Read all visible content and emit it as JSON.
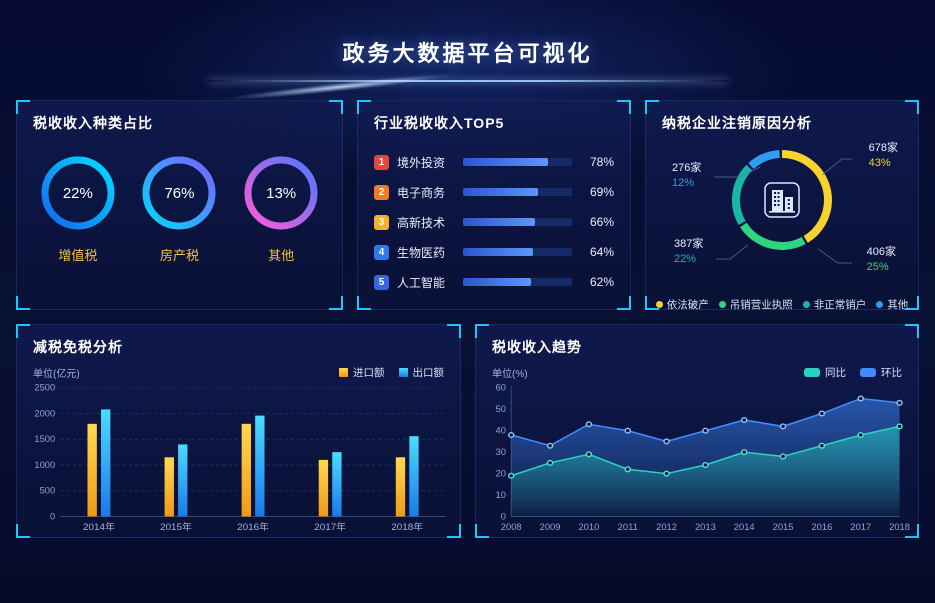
{
  "header": {
    "title": "政务大数据平台可视化"
  },
  "panels": {
    "tax_types": {
      "title": "税收收入种类占比"
    },
    "industry_top5": {
      "title": "行业税收收入TOP5"
    },
    "deregistration": {
      "title": "纳税企业注销原因分析"
    },
    "tax_reduction": {
      "title": "减税免税分析",
      "unit": "单位(亿元)"
    },
    "tax_trend": {
      "title": "税收收入趋势",
      "unit": "单位(%)"
    }
  },
  "chart_data": [
    {
      "id": "tax_types",
      "type": "pie",
      "title": "税收收入种类占比",
      "rings": [
        {
          "label": "增值税",
          "value": 22,
          "gradient": [
            "#1565f0",
            "#00e0ff"
          ]
        },
        {
          "label": "房产税",
          "value": 76,
          "gradient": [
            "#00d8ff",
            "#7b61ff"
          ]
        },
        {
          "label": "其他",
          "value": 13,
          "gradient": [
            "#ff5bd5",
            "#4f78ff"
          ]
        }
      ]
    },
    {
      "id": "industry_top5",
      "type": "bar",
      "title": "行业税收收入TOP5",
      "categories": [
        "境外投资",
        "电子商务",
        "高新技术",
        "生物医药",
        "人工智能"
      ],
      "values": [
        78,
        69,
        66,
        64,
        62
      ],
      "value_suffix": "%",
      "rank_colors": [
        "#e8453c",
        "#f07c2a",
        "#f0b32a",
        "#2e79f0",
        "#3a64e8"
      ]
    },
    {
      "id": "deregistration",
      "type": "pie",
      "title": "纳税企业注销原因分析",
      "slices": [
        {
          "label": "依法破产",
          "count": "678家",
          "percent": 43,
          "color": "#f6d32d",
          "pos": "top-right"
        },
        {
          "label": "吊销营业执照",
          "count": "406家",
          "percent": 25,
          "color": "#2fd57e",
          "pos": "bottom-right"
        },
        {
          "label": "非正常销户",
          "count": "387家",
          "percent": 22,
          "color": "#17b8a8",
          "pos": "bottom-left"
        },
        {
          "label": "其他",
          "count": "276家",
          "percent": 12,
          "color": "#2e9ff0",
          "pos": "left"
        }
      ]
    },
    {
      "id": "tax_reduction",
      "type": "bar",
      "title": "减税免税分析",
      "ylabel": "单位(亿元)",
      "categories": [
        "2014年",
        "2015年",
        "2016年",
        "2017年",
        "2018年"
      ],
      "series": [
        {
          "name": "进口额",
          "color_top": "#ffd94f",
          "color_bottom": "#f09a15",
          "values": [
            1800,
            1150,
            1800,
            1100,
            1150
          ]
        },
        {
          "name": "出口额",
          "color_top": "#49ddff",
          "color_bottom": "#1b79ec",
          "values": [
            2080,
            1400,
            1960,
            1250,
            1560
          ]
        }
      ],
      "ylim": [
        0,
        2500
      ],
      "yticks": [
        0,
        500,
        1000,
        1500,
        2000,
        2500
      ]
    },
    {
      "id": "tax_trend",
      "type": "area",
      "title": "税收收入趋势",
      "ylabel": "单位(%)",
      "x": [
        "2008",
        "2009",
        "2010",
        "2011",
        "2012",
        "2013",
        "2014",
        "2015",
        "2016",
        "2017",
        "2018"
      ],
      "series": [
        {
          "name": "同比",
          "color": "#27d3c0",
          "dot": "#5fe3d6",
          "values": [
            19,
            25,
            29,
            22,
            20,
            24,
            30,
            28,
            33,
            38,
            42
          ]
        },
        {
          "name": "环比",
          "color": "#3f8bff",
          "dot": "#8fc6ff",
          "values": [
            38,
            33,
            43,
            40,
            35,
            40,
            45,
            42,
            48,
            55,
            53
          ]
        }
      ],
      "ylim": [
        0,
        60
      ],
      "yticks": [
        0,
        10,
        20,
        30,
        40,
        50,
        60
      ]
    }
  ]
}
